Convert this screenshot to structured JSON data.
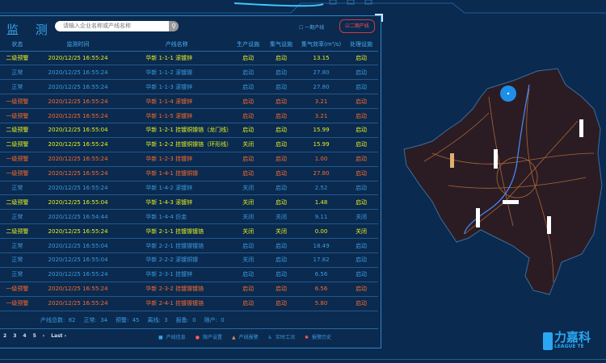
{
  "header": {
    "title": "监 测",
    "search_placeholder": "请输入企业名称或产线名称",
    "phase1_label": "一期产线",
    "phase2_label": "二期产线"
  },
  "colors": {
    "warn2": "#e6ef1f",
    "warn1": "#ff6a2a",
    "normal": "#3b9be0",
    "background": "#0a2a4f"
  },
  "table": {
    "columns": [
      "状态",
      "监测时间",
      "产线名称",
      "生产设施",
      "集气设施",
      "集气效率(m³/s)",
      "处理设施"
    ],
    "rows": [
      {
        "level": "y",
        "cells": [
          "二级预警",
          "2020/12/25 16:55:24",
          "华新 1-1-1 滚镀锌",
          "启动",
          "启动",
          "13.15",
          "启动"
        ]
      },
      {
        "level": "b",
        "cells": [
          "正常",
          "2020/12/25 16:55:24",
          "华新 1-1-2 滚镀镍",
          "启动",
          "启动",
          "27.80",
          "启动"
        ]
      },
      {
        "level": "b",
        "cells": [
          "正常",
          "2020/12/25 16:55:24",
          "华新 1-1-3 滚镀锌",
          "启动",
          "启动",
          "27.80",
          "启动"
        ]
      },
      {
        "level": "r",
        "cells": [
          "一级预警",
          "2020/12/25 16:55:24",
          "华新 1-1-4 滚镀锌",
          "启动",
          "启动",
          "3.21",
          "启动"
        ]
      },
      {
        "level": "r",
        "cells": [
          "一级预警",
          "2020/12/25 16:55:24",
          "华新 1-1-5 滚镀锌",
          "启动",
          "启动",
          "3.21",
          "启动"
        ]
      },
      {
        "level": "y",
        "cells": [
          "二级预警",
          "2020/12/25 16:55:04",
          "华新 1-2-1 挂镀铜镍铬（龙门线）",
          "启动",
          "启动",
          "15.99",
          "启动"
        ]
      },
      {
        "level": "y",
        "cells": [
          "二级预警",
          "2020/12/25 16:55:24",
          "华新 1-2-2 挂镀铜镍铬（环形线）",
          "关闭",
          "启动",
          "15.99",
          "启动"
        ]
      },
      {
        "level": "r",
        "cells": [
          "一级预警",
          "2020/12/25 16:55:24",
          "华新 1-2-3 挂镀锌",
          "启动",
          "启动",
          "1.00",
          "启动"
        ]
      },
      {
        "level": "r",
        "cells": [
          "一级预警",
          "2020/12/25 16:55:24",
          "华新 1-4-1 挂镀铜镍",
          "启动",
          "启动",
          "27.80",
          "启动"
        ]
      },
      {
        "level": "b",
        "cells": [
          "正常",
          "2020/12/25 16:55:24",
          "华新 1-4-2 滚镀锌",
          "关闭",
          "启动",
          "2.52",
          "启动"
        ]
      },
      {
        "level": "y",
        "cells": [
          "二级预警",
          "2020/12/25 16:55:04",
          "华新 1-4-3 滚镀锌",
          "关闭",
          "启动",
          "1.48",
          "启动"
        ]
      },
      {
        "level": "b",
        "cells": [
          "正常",
          "2020/12/25 16:54:44",
          "华新 1-4-4 仿金",
          "关闭",
          "关闭",
          "9.11",
          "关闭"
        ]
      },
      {
        "level": "y",
        "cells": [
          "二级预警",
          "2020/12/25 16:55:24",
          "华新 2-1-1 挂镀镍镀铬",
          "关闭",
          "关闭",
          "0.00",
          "关闭"
        ]
      },
      {
        "level": "b",
        "cells": [
          "正常",
          "2020/12/25 16:55:04",
          "华新 2-2-1 挂镀镍镀铬",
          "启动",
          "启动",
          "18.49",
          "启动"
        ]
      },
      {
        "level": "b",
        "cells": [
          "正常",
          "2020/12/25 16:55:04",
          "华新 2-2-2 滚镀铜镍",
          "关闭",
          "启动",
          "17.82",
          "启动"
        ]
      },
      {
        "level": "b",
        "cells": [
          "正常",
          "2020/12/25 16:55:24",
          "华新 2-3-1 挂镀锌",
          "启动",
          "启动",
          "6.56",
          "启动"
        ]
      },
      {
        "level": "r",
        "cells": [
          "一级预警",
          "2020/12/25 16:55:24",
          "华新 2-3-2 挂镀镍镀铬",
          "启动",
          "启动",
          "6.56",
          "启动"
        ]
      },
      {
        "level": "r",
        "cells": [
          "一级预警",
          "2020/12/25 16:55:24",
          "华新 2-4-1 挂镀镍镀铬",
          "启动",
          "启动",
          "5.80",
          "启动"
        ]
      }
    ]
  },
  "summary": [
    "产线总数: 82",
    "正常: 34",
    "预警: 45",
    "离线: 3",
    "报备: 0",
    "限产: 0"
  ],
  "pager": [
    "2",
    "3",
    "4",
    "5",
    "›",
    "Last ›"
  ],
  "links": [
    {
      "icon": "info-icon",
      "glyph": "■",
      "label": "产线信息",
      "color": "#3b9be0"
    },
    {
      "icon": "limit-icon",
      "glyph": "●",
      "label": "限产设置",
      "color": "#ff5a5a"
    },
    {
      "icon": "alarm-triangle-icon",
      "glyph": "▲",
      "label": "产线报警",
      "color": "#c98a6a"
    },
    {
      "icon": "realtime-icon",
      "glyph": "♿",
      "label": "实时工况",
      "color": "#3b9be0"
    },
    {
      "icon": "history-icon",
      "glyph": "✱",
      "label": "报警历史",
      "color": "#ff5a5a"
    }
  ],
  "logo": {
    "cn": "力嘉科",
    "en": "LEAGUE TE"
  }
}
